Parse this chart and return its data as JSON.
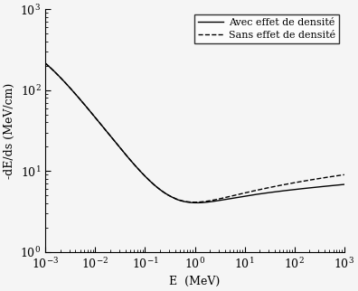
{
  "title": "",
  "xlabel": "E  (MeV)",
  "ylabel": "-dE/ds (MeV/cm)",
  "xlim": [
    0.001,
    1000.0
  ],
  "ylim": [
    1.0,
    1000.0
  ],
  "legend": [
    "Avec effet de densité",
    "Sans effet de densité"
  ],
  "background_color": "#f5f5f5",
  "line_color": "#000000",
  "figsize": [
    3.96,
    3.22
  ],
  "dpi": 100
}
